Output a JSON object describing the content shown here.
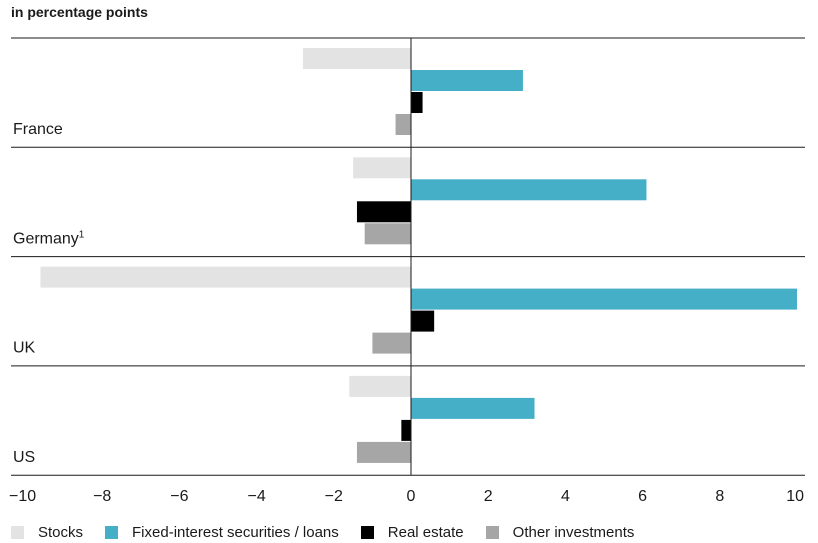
{
  "chart_data": {
    "type": "bar",
    "orientation": "horizontal",
    "title": "in percentage points",
    "xlabel": "",
    "ylabel": "",
    "xlim": [
      -10,
      10
    ],
    "xticks": [
      "−10",
      "−8",
      "−6",
      "−4",
      "−2",
      "0",
      "2",
      "4",
      "6",
      "8",
      "10"
    ],
    "categories": [
      {
        "name": "France",
        "footnote": ""
      },
      {
        "name": "Germany",
        "footnote": "1"
      },
      {
        "name": "UK",
        "footnote": ""
      },
      {
        "name": "US",
        "footnote": ""
      }
    ],
    "series": [
      {
        "name": "Stocks",
        "color": "#e3e3e3",
        "values": [
          -2.8,
          -1.5,
          -9.6,
          -1.6
        ]
      },
      {
        "name": "Fixed-interest securities / loans",
        "color": "#46afc8",
        "values": [
          2.9,
          6.1,
          10.0,
          3.2
        ]
      },
      {
        "name": "Real estate",
        "color": "#000000",
        "values": [
          0.3,
          -1.4,
          0.6,
          -0.25
        ]
      },
      {
        "name": "Other investments",
        "color": "#a6a6a6",
        "values": [
          -0.4,
          -1.2,
          -1.0,
          -1.4
        ]
      }
    ],
    "legend_position": "bottom",
    "grid": false
  }
}
